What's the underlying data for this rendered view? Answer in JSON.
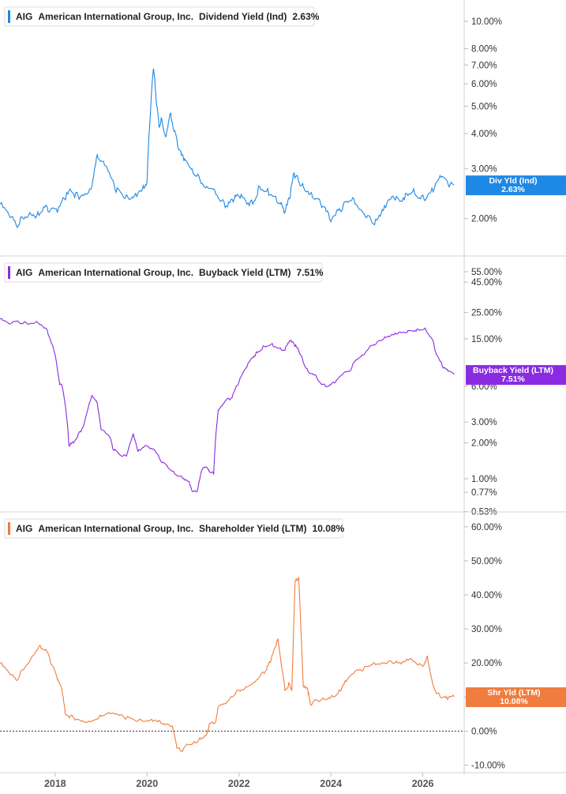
{
  "colors": {
    "dividend": "#1e88e5",
    "buyback": "#8a2be2",
    "shareholder": "#f07c3e",
    "axis": "#cccccc",
    "text": "#333333"
  },
  "chart_data": [
    {
      "type": "line",
      "panel": "dividend-yield",
      "legend": {
        "ticker": "AIG",
        "company": "American International Group, Inc.",
        "metric": "Dividend Yield (Ind)",
        "value": "2.63%"
      },
      "badge": {
        "label": "Div Yld (Ind)",
        "value": "2.63%"
      },
      "y_scale": "log",
      "ylim": [
        1.72,
        11.3
      ],
      "y_ticks": [
        {
          "value": 10,
          "label": "10.00%"
        },
        {
          "value": 8,
          "label": "8.00%"
        },
        {
          "value": 7,
          "label": "7.00%"
        },
        {
          "value": 6,
          "label": "6.00%"
        },
        {
          "value": 5,
          "label": "5.00%"
        },
        {
          "value": 4,
          "label": "4.00%"
        },
        {
          "value": 3,
          "label": "3.00%"
        },
        {
          "value": 2,
          "label": "2.00%"
        }
      ],
      "series": [
        {
          "x": [
            2016.8,
            2017.0,
            2017.15,
            2017.3,
            2017.45,
            2017.6,
            2017.75,
            2017.9,
            2018.05,
            2018.2,
            2018.35,
            2018.5,
            2018.65,
            2018.8,
            2018.9,
            2019.0,
            2019.15,
            2019.3,
            2019.45,
            2019.6,
            2019.75,
            2019.9,
            2020.0,
            2020.08,
            2020.14,
            2020.2,
            2020.26,
            2020.32,
            2020.4,
            2020.5,
            2020.6,
            2020.7,
            2020.8,
            2020.9,
            2021.0,
            2021.15,
            2021.3,
            2021.45,
            2021.6,
            2021.75,
            2021.9,
            2022.0,
            2022.15,
            2022.3,
            2022.45,
            2022.6,
            2022.75,
            2022.9,
            2023.0,
            2023.1,
            2023.2,
            2023.3,
            2023.4,
            2023.55,
            2023.7,
            2023.85,
            2024.0,
            2024.1,
            2024.2,
            2024.35,
            2024.5,
            2024.65,
            2024.8,
            2024.95,
            2025.1,
            2025.2,
            2025.35,
            2025.5,
            2025.65,
            2025.8,
            2025.95,
            2026.1,
            2026.25,
            2026.4,
            2026.55,
            2026.68
          ],
          "values": [
            2.25,
            2.05,
            1.9,
            2.0,
            2.1,
            2.05,
            2.2,
            2.15,
            2.1,
            2.35,
            2.5,
            2.4,
            2.45,
            2.6,
            3.3,
            3.2,
            2.95,
            2.55,
            2.45,
            2.35,
            2.45,
            2.55,
            2.7,
            5.0,
            6.8,
            5.2,
            4.2,
            4.5,
            3.9,
            4.7,
            4.1,
            3.5,
            3.2,
            3.1,
            2.9,
            2.75,
            2.6,
            2.55,
            2.3,
            2.2,
            2.35,
            2.4,
            2.3,
            2.25,
            2.6,
            2.5,
            2.4,
            2.25,
            2.1,
            2.35,
            2.9,
            2.7,
            2.6,
            2.45,
            2.35,
            2.2,
            1.95,
            2.05,
            2.15,
            2.3,
            2.35,
            2.15,
            2.05,
            1.9,
            2.1,
            2.2,
            2.4,
            2.3,
            2.45,
            2.55,
            2.35,
            2.4,
            2.55,
            2.8,
            2.65,
            2.63
          ]
        }
      ]
    },
    {
      "type": "line",
      "panel": "buyback-yield",
      "legend": {
        "ticker": "AIG",
        "company": "American International Group, Inc.",
        "metric": "Buyback Yield (LTM)",
        "value": "7.51%"
      },
      "badge": {
        "label": "Buyback Yield (LTM)",
        "value": "7.51%"
      },
      "y_scale": "log",
      "ylim": [
        0.51,
        65
      ],
      "y_ticks": [
        {
          "value": 55,
          "label": "55.00%"
        },
        {
          "value": 45,
          "label": "45.00%"
        },
        {
          "value": 25,
          "label": "25.00%"
        },
        {
          "value": 15,
          "label": "15.00%"
        },
        {
          "value": 6,
          "label": "6.00%"
        },
        {
          "value": 3,
          "label": "3.00%"
        },
        {
          "value": 2,
          "label": "2.00%"
        },
        {
          "value": 1,
          "label": "1.00%"
        },
        {
          "value": 0.77,
          "label": "0.77%"
        },
        {
          "value": 0.53,
          "label": "0.53%"
        }
      ],
      "series": [
        {
          "x": [
            2016.8,
            2017.0,
            2017.2,
            2017.4,
            2017.6,
            2017.8,
            2017.95,
            2018.1,
            2018.15,
            2018.3,
            2018.4,
            2018.55,
            2018.62,
            2018.8,
            2018.9,
            2019.0,
            2019.2,
            2019.25,
            2019.4,
            2019.55,
            2019.7,
            2019.8,
            2019.95,
            2020.1,
            2020.2,
            2020.3,
            2020.45,
            2020.6,
            2020.75,
            2020.9,
            2021.0,
            2021.1,
            2021.2,
            2021.3,
            2021.35,
            2021.45,
            2021.55,
            2021.6,
            2021.7,
            2021.85,
            2022.0,
            2022.15,
            2022.3,
            2022.4,
            2022.55,
            2022.7,
            2022.85,
            2023.0,
            2023.1,
            2023.2,
            2023.3,
            2023.4,
            2023.5,
            2023.65,
            2023.8,
            2023.95,
            2024.1,
            2024.25,
            2024.4,
            2024.55,
            2024.7,
            2024.85,
            2025.0,
            2025.15,
            2025.3,
            2025.45,
            2025.6,
            2025.75,
            2025.9,
            2026.05,
            2026.2,
            2026.3,
            2026.45,
            2026.55,
            2026.68
          ],
          "values": [
            22,
            20,
            21,
            20,
            21,
            18.5,
            13,
            6.2,
            6.0,
            1.9,
            2.0,
            2.5,
            2.8,
            5.0,
            4.5,
            2.6,
            2.2,
            1.8,
            1.6,
            1.55,
            2.4,
            1.7,
            1.9,
            1.8,
            1.65,
            1.4,
            1.25,
            1.1,
            1.05,
            0.95,
            0.78,
            0.8,
            1.2,
            1.25,
            1.15,
            1.1,
            3.8,
            4.0,
            4.5,
            4.8,
            6.5,
            8.5,
            10.5,
            11.5,
            13.0,
            13.5,
            12.5,
            12.0,
            14.5,
            13.5,
            12.0,
            9.5,
            8.0,
            7.5,
            6.2,
            6.0,
            6.5,
            7.5,
            8.0,
            10.0,
            11.0,
            13.0,
            14.0,
            15.0,
            16.0,
            16.5,
            17.0,
            17.5,
            18.0,
            18.5,
            15.0,
            11.0,
            8.5,
            8.0,
            7.51
          ]
        }
      ]
    },
    {
      "type": "line",
      "panel": "shareholder-yield",
      "legend": {
        "ticker": "AIG",
        "company": "American International Group, Inc.",
        "metric": "Shareholder Yield (LTM)",
        "value": "10.08%"
      },
      "badge": {
        "label": "Shr Yld (LTM)",
        "value": "10.08%"
      },
      "y_scale": "linear",
      "ylim": [
        -11.5,
        62.5
      ],
      "zero_line": true,
      "y_ticks": [
        {
          "value": 60,
          "label": "60.00%"
        },
        {
          "value": 50,
          "label": "50.00%"
        },
        {
          "value": 40,
          "label": "40.00%"
        },
        {
          "value": 30,
          "label": "30.00%"
        },
        {
          "value": 20,
          "label": "20.00%"
        },
        {
          "value": 10,
          "label": "10.00%"
        },
        {
          "value": 0,
          "label": "0.00%"
        },
        {
          "value": -10,
          "label": "-10.00%"
        }
      ],
      "x_ticks": [
        {
          "value": 2018,
          "label": "2018"
        },
        {
          "value": 2020,
          "label": "2020"
        },
        {
          "value": 2022,
          "label": "2022"
        },
        {
          "value": 2024,
          "label": "2024"
        },
        {
          "value": 2026,
          "label": "2026"
        }
      ],
      "series": [
        {
          "x": [
            2016.8,
            2017.0,
            2017.15,
            2017.3,
            2017.5,
            2017.65,
            2017.8,
            2017.95,
            2018.05,
            2018.15,
            2018.22,
            2018.4,
            2018.6,
            2018.8,
            2018.95,
            2019.1,
            2019.3,
            2019.5,
            2019.7,
            2019.9,
            2020.1,
            2020.25,
            2020.4,
            2020.55,
            2020.65,
            2020.75,
            2020.9,
            2021.05,
            2021.15,
            2021.3,
            2021.35,
            2021.5,
            2021.55,
            2021.7,
            2021.85,
            2022.0,
            2022.15,
            2022.3,
            2022.45,
            2022.6,
            2022.7,
            2022.8,
            2022.85,
            2023.0,
            2023.1,
            2023.15,
            2023.22,
            2023.3,
            2023.4,
            2023.5,
            2023.55,
            2023.7,
            2023.85,
            2024.0,
            2024.15,
            2024.25,
            2024.35,
            2024.5,
            2024.65,
            2024.8,
            2024.95,
            2025.1,
            2025.25,
            2025.4,
            2025.55,
            2025.7,
            2025.85,
            2026.0,
            2026.1,
            2026.2,
            2026.3,
            2026.45,
            2026.55,
            2026.68
          ],
          "values": [
            20,
            17,
            15,
            18,
            22,
            25,
            24,
            19,
            15,
            12,
            5,
            4,
            3,
            3,
            4,
            5,
            5,
            4,
            3.5,
            3,
            3.5,
            3,
            2,
            1.5,
            -5,
            -6,
            -4,
            -3.5,
            -2,
            -1,
            2,
            3,
            7,
            8,
            10,
            12,
            13,
            14,
            16,
            18,
            21,
            25,
            27,
            12,
            14,
            12,
            44,
            45,
            13,
            12,
            8,
            9,
            9.5,
            10,
            11,
            13,
            15,
            17,
            18,
            19,
            20,
            20,
            20.5,
            20,
            20,
            21,
            20,
            19,
            22,
            15,
            11,
            10,
            9.5,
            10.08
          ]
        }
      ]
    }
  ]
}
